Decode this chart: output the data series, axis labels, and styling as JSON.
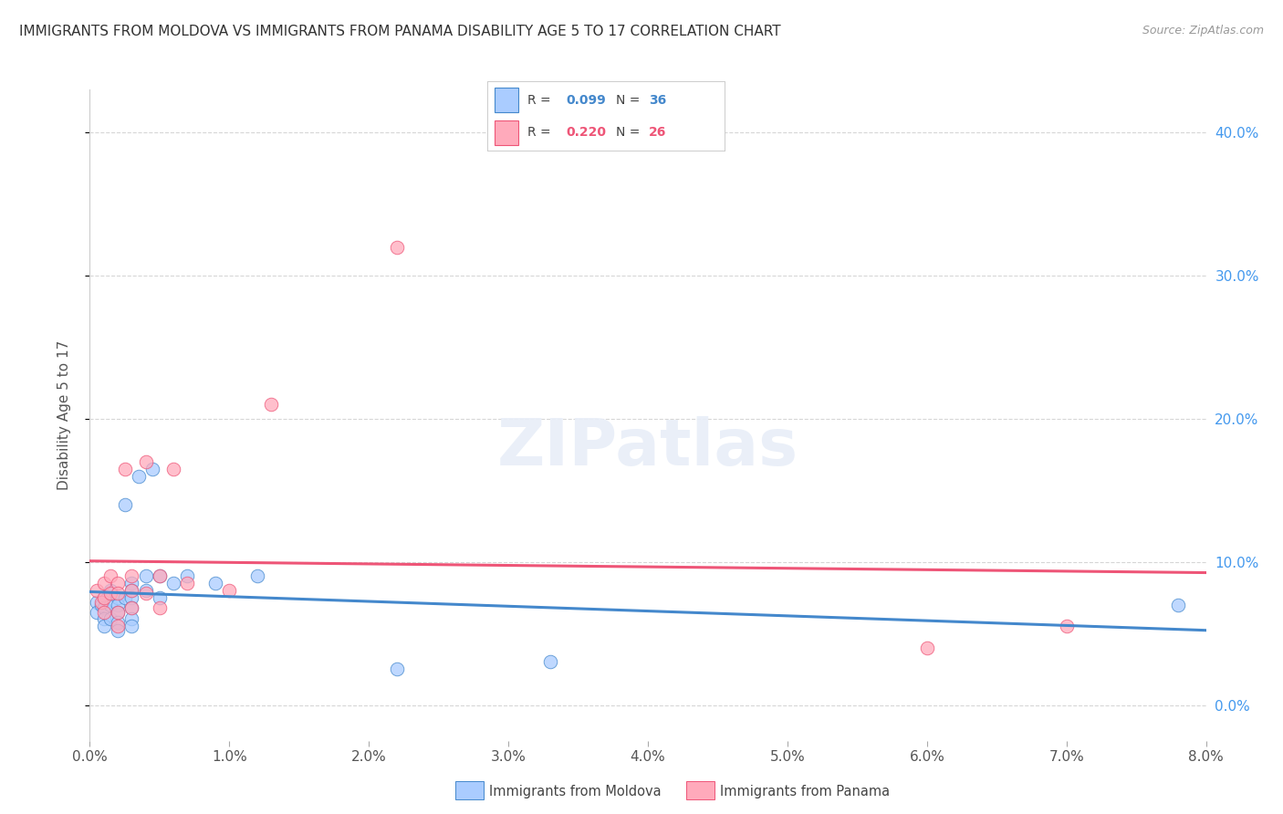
{
  "title": "IMMIGRANTS FROM MOLDOVA VS IMMIGRANTS FROM PANAMA DISABILITY AGE 5 TO 17 CORRELATION CHART",
  "source": "Source: ZipAtlas.com",
  "ylabel": "Disability Age 5 to 17",
  "legend_label1": "Immigrants from Moldova",
  "legend_label2": "Immigrants from Panama",
  "R1": 0.099,
  "N1": 36,
  "R2": 0.22,
  "N2": 26,
  "color1": "#aaccff",
  "color2": "#ffaabb",
  "line_color1": "#4488cc",
  "line_color2": "#ee5577",
  "xlim_min": 0.0,
  "xlim_max": 0.08,
  "ylim_min": -0.025,
  "ylim_max": 0.43,
  "x_ticks": [
    0.0,
    0.01,
    0.02,
    0.03,
    0.04,
    0.05,
    0.06,
    0.07,
    0.08
  ],
  "y_ticks": [
    0.0,
    0.1,
    0.2,
    0.3,
    0.4
  ],
  "moldova_x": [
    0.0005,
    0.0005,
    0.0008,
    0.001,
    0.001,
    0.001,
    0.001,
    0.0015,
    0.0015,
    0.0015,
    0.002,
    0.002,
    0.002,
    0.002,
    0.002,
    0.0025,
    0.0025,
    0.003,
    0.003,
    0.003,
    0.003,
    0.003,
    0.003,
    0.0035,
    0.004,
    0.004,
    0.0045,
    0.005,
    0.005,
    0.006,
    0.007,
    0.009,
    0.012,
    0.022,
    0.033,
    0.078
  ],
  "moldova_y": [
    0.072,
    0.065,
    0.07,
    0.075,
    0.068,
    0.06,
    0.055,
    0.08,
    0.07,
    0.06,
    0.075,
    0.07,
    0.065,
    0.058,
    0.052,
    0.14,
    0.075,
    0.085,
    0.08,
    0.075,
    0.068,
    0.06,
    0.055,
    0.16,
    0.09,
    0.08,
    0.165,
    0.09,
    0.075,
    0.085,
    0.09,
    0.085,
    0.09,
    0.025,
    0.03,
    0.07
  ],
  "panama_x": [
    0.0005,
    0.0008,
    0.001,
    0.001,
    0.001,
    0.0015,
    0.0015,
    0.002,
    0.002,
    0.002,
    0.002,
    0.0025,
    0.003,
    0.003,
    0.003,
    0.004,
    0.004,
    0.005,
    0.005,
    0.006,
    0.007,
    0.01,
    0.013,
    0.022,
    0.06,
    0.07
  ],
  "panama_y": [
    0.08,
    0.072,
    0.085,
    0.075,
    0.065,
    0.09,
    0.078,
    0.085,
    0.078,
    0.065,
    0.055,
    0.165,
    0.09,
    0.08,
    0.068,
    0.17,
    0.078,
    0.09,
    0.068,
    0.165,
    0.085,
    0.08,
    0.21,
    0.32,
    0.04,
    0.055
  ],
  "background_color": "#ffffff",
  "grid_color": "#cccccc",
  "title_fontsize": 11,
  "label_fontsize": 11,
  "tick_fontsize": 11,
  "right_axis_color": "#4499ee"
}
